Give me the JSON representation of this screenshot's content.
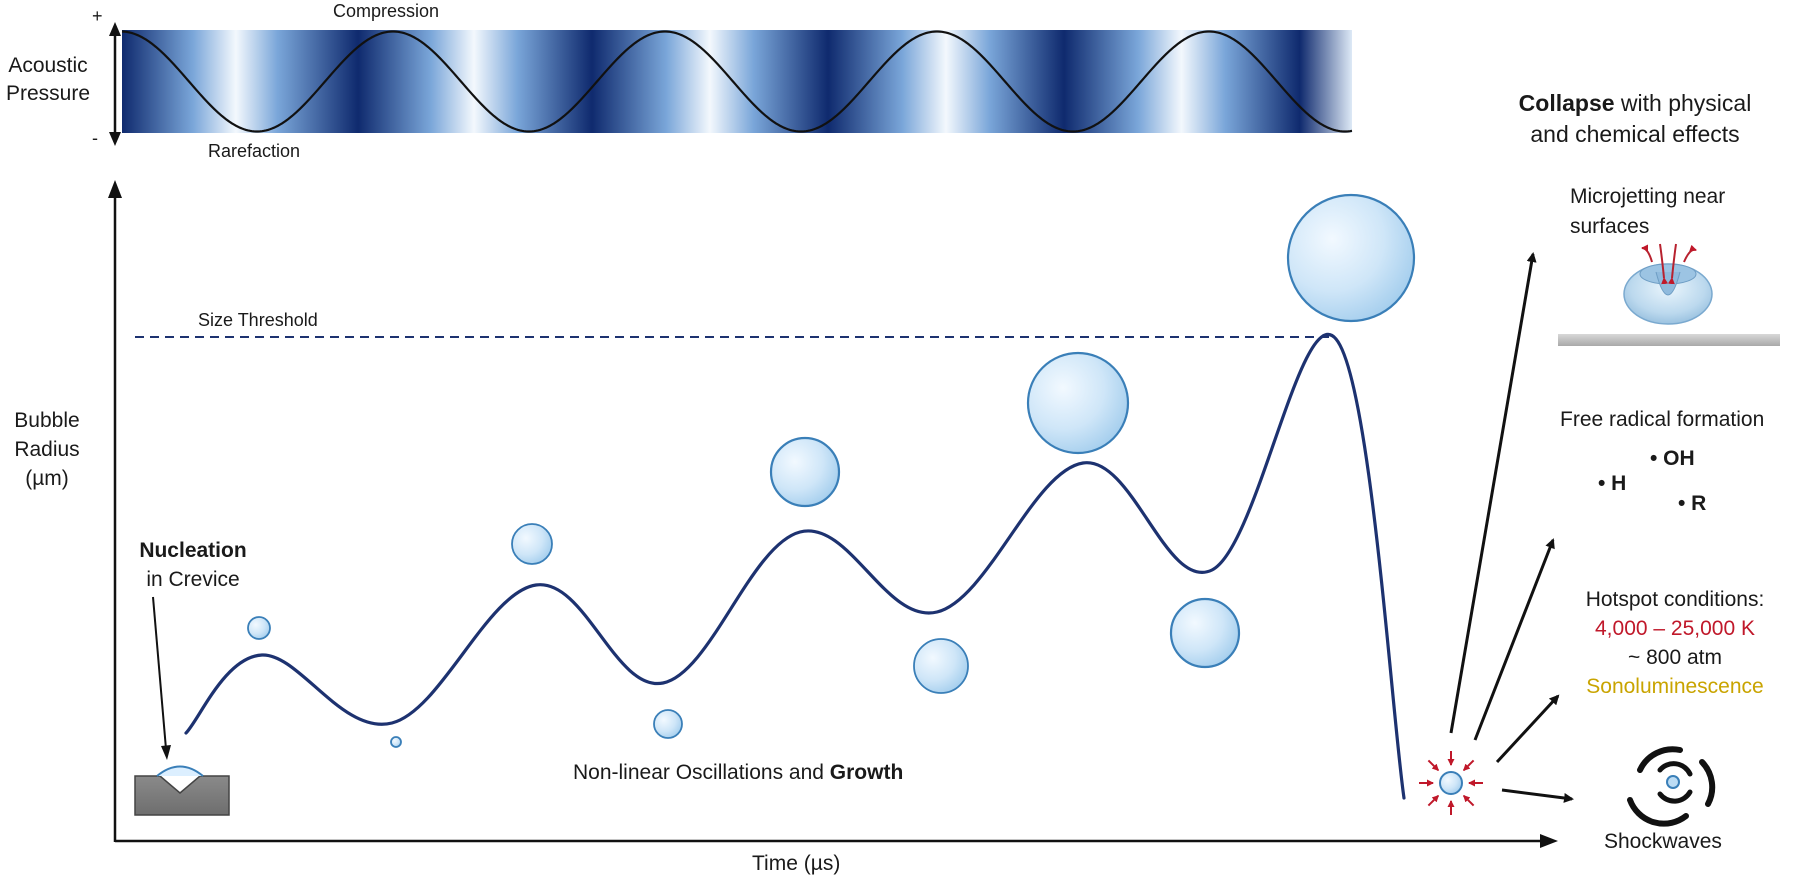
{
  "acoustic": {
    "plus_sign": "+",
    "minus_sign": "-",
    "ylabel_line1": "Acoustic",
    "ylabel_line2": "Pressure",
    "compression": "Compression",
    "rarefaction": "Rarefaction"
  },
  "main": {
    "ylabel_line1": "Bubble",
    "ylabel_line2": "Radius",
    "ylabel_line3": "(µm)",
    "xlabel": "Time (µs)",
    "threshold_label": "Size Threshold",
    "nucleation_bold": "Nucleation",
    "nucleation_rest": "in Crevice",
    "growth_prefix": "Non-linear Oscillations and ",
    "growth_bold": "Growth"
  },
  "collapse": {
    "title_bold": "Collapse",
    "title_rest": " with physical",
    "title_line2": "and chemical effects",
    "microjet_line1": "Microjetting near",
    "microjet_line2": "surfaces",
    "radical_title": "Free radical formation",
    "radical_oh": "• OH",
    "radical_h": "• H",
    "radical_r": "• R",
    "hotspot_title": "Hotspot conditions:",
    "hotspot_temp": "4,000 – 25,000 K",
    "hotspot_pressure": "~ 800 atm",
    "hotspot_sono": "Sonoluminescence",
    "shockwaves": "Shockwaves"
  },
  "colors": {
    "curve": "#1d3270",
    "wave_dark": "#0f2a6e",
    "bubble_fill": "#bcdcf4",
    "bubble_stroke": "#3a7fb8",
    "hot_red": "#c0182a",
    "sono_gold": "#c9a400",
    "jet_red": "#b8222f"
  }
}
